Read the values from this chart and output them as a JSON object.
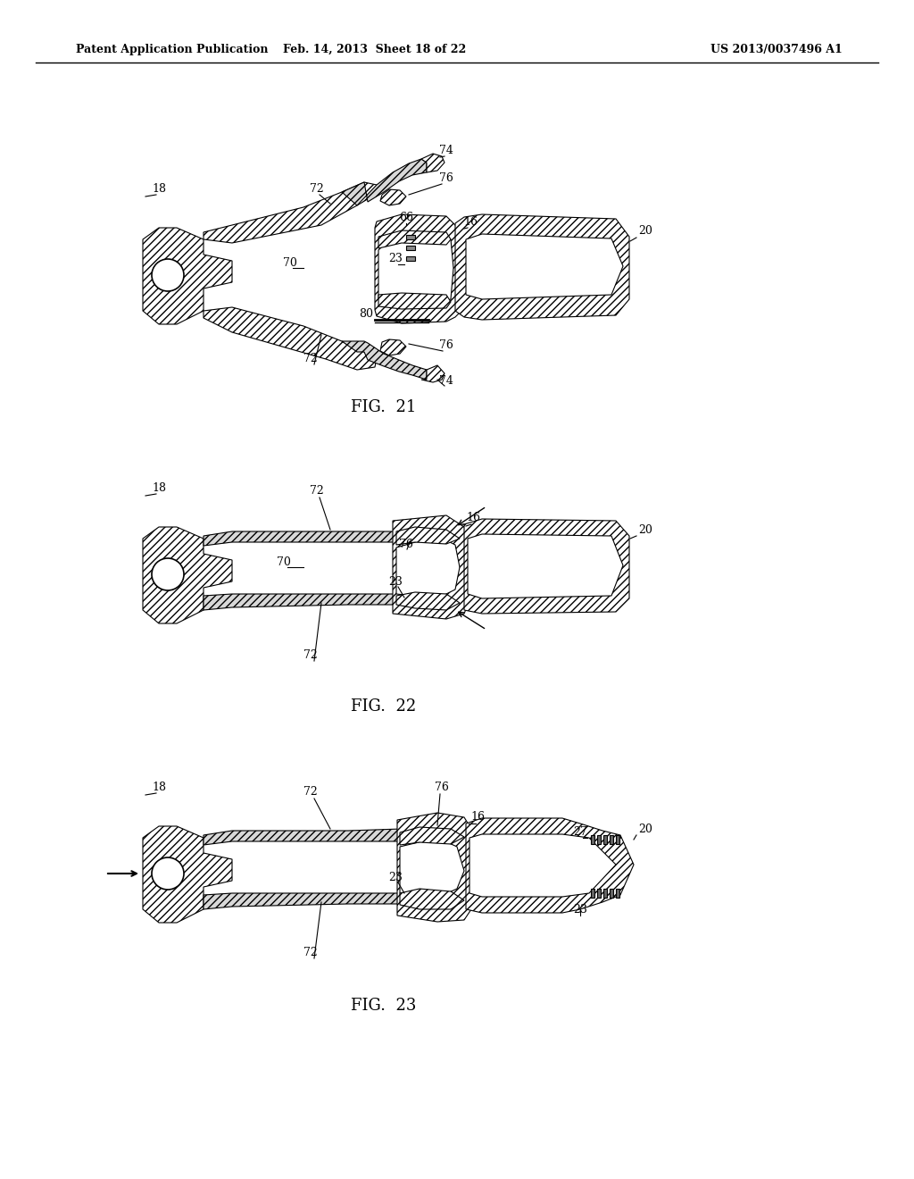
{
  "header_left": "Patent Application Publication",
  "header_middle": "Feb. 14, 2013  Sheet 18 of 22",
  "header_right": "US 2013/0037496 A1",
  "background_color": "#ffffff",
  "line_color": "#000000",
  "fig21_label": "FIG.  21",
  "fig22_label": "FIG.  22",
  "fig23_label": "FIG.  23"
}
